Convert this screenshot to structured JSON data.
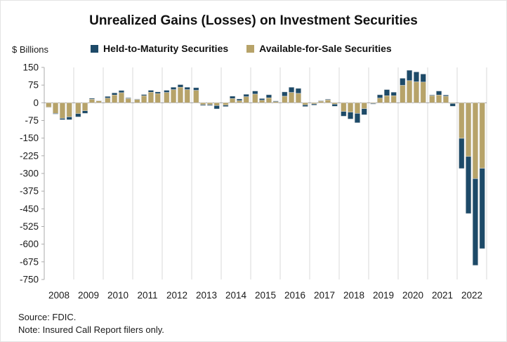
{
  "title": "Unrealized Gains (Losses) on Investment Securities",
  "y_axis_label": "$ Billions",
  "legend": [
    {
      "label": "Held-to-Maturity Securities",
      "color": "#1d4a68"
    },
    {
      "label": "Available-for-Sale Securities",
      "color": "#b7a369"
    }
  ],
  "source": "Source: FDIC.",
  "note": "Note: Insured Call Report filers only.",
  "colors": {
    "htm": "#1d4a68",
    "afs": "#b7a369",
    "gridline": "#d9d9d9",
    "axis": "#ababab",
    "zero_line": "#9e9e9e",
    "text": "#1a1a1a"
  },
  "chart_data": {
    "type": "bar",
    "stacked": true,
    "title": "Unrealized Gains (Losses) on Investment Securities",
    "ylabel": "$ Billions",
    "xlabel": "",
    "unit": "USD billions",
    "frequency": "quarterly",
    "years": [
      "2008",
      "2009",
      "2010",
      "2011",
      "2012",
      "2013",
      "2014",
      "2015",
      "2016",
      "2017",
      "2018",
      "2019",
      "2020",
      "2021",
      "2022"
    ],
    "quarters_per_year": 4,
    "ylim": [
      -750,
      150
    ],
    "ytick_step": 75,
    "yticks": [
      150,
      75,
      0,
      -75,
      -150,
      -225,
      -300,
      -375,
      -450,
      -525,
      -600,
      -675,
      -750
    ],
    "grid": "vertical-year-separators-and-zero-line-only",
    "legend_position": "top",
    "series": [
      {
        "name": "Available-for-Sale Securities",
        "color": "#b7a369",
        "values": [
          -19,
          -45,
          -66,
          -60,
          -46,
          -34,
          15,
          8,
          20,
          33,
          43,
          18,
          14,
          30,
          45,
          39,
          44,
          56,
          66,
          56,
          53,
          -8,
          -8,
          -12,
          -10,
          18,
          9,
          26,
          37,
          11,
          21,
          5,
          28,
          44,
          40,
          -9,
          -5,
          7,
          12,
          -6,
          -37,
          -40,
          -45,
          -25,
          -3,
          20,
          30,
          30,
          74,
          94,
          89,
          88,
          30,
          33,
          28,
          -3,
          -151,
          -228,
          -322,
          -278
        ]
      },
      {
        "name": "Held-to-Maturity Securities",
        "color": "#1d4a68",
        "values": [
          -1,
          -3,
          -6,
          -12,
          -14,
          -11,
          4,
          1,
          7,
          9,
          9,
          3,
          2,
          5,
          8,
          7,
          9,
          10,
          11,
          10,
          11,
          -4,
          -4,
          -14,
          -6,
          10,
          7,
          10,
          13,
          7,
          13,
          3,
          18,
          22,
          21,
          -7,
          -5,
          2,
          3,
          -9,
          -20,
          -29,
          -40,
          -26,
          -3,
          14,
          26,
          15,
          30,
          44,
          42,
          34,
          3,
          17,
          5,
          -12,
          -128,
          -242,
          -368,
          -341
        ]
      }
    ]
  }
}
